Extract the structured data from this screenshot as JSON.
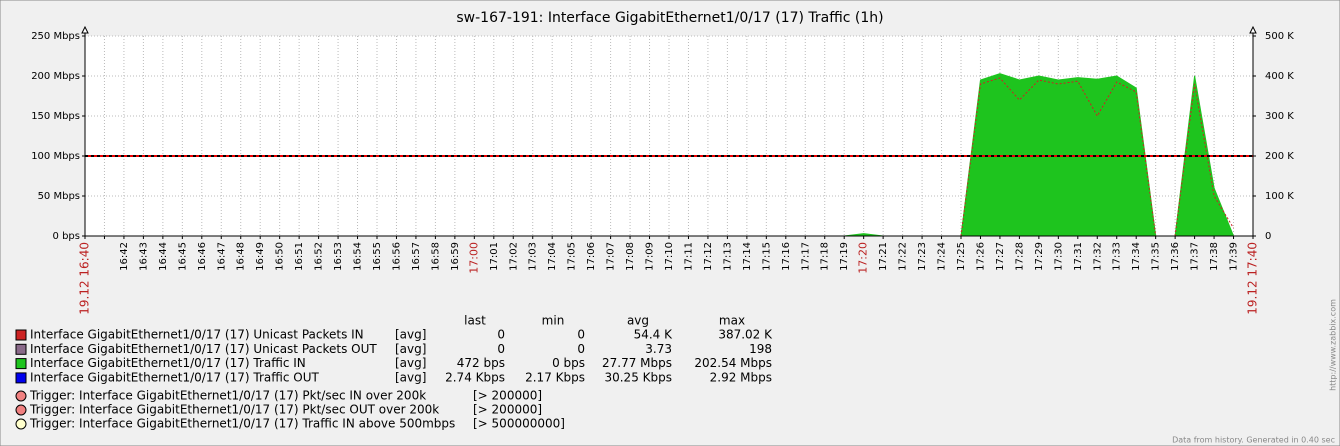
{
  "chart_data": {
    "type": "area",
    "title": "sw-167-191: Interface GigabitEthernet1/0/17 (17) Traffic  (1h)",
    "x": [
      "19.12 16:40",
      null,
      "16:42",
      "16:43",
      "16:44",
      "16:45",
      "16:46",
      "16:47",
      "16:48",
      "16:49",
      "16:50",
      "16:51",
      "16:52",
      "16:53",
      "16:54",
      "16:55",
      "16:56",
      "16:57",
      "16:58",
      "16:59",
      "17:00",
      "17:01",
      "17:02",
      "17:03",
      "17:04",
      "17:05",
      "17:06",
      "17:07",
      "17:08",
      "17:09",
      "17:10",
      "17:11",
      "17:12",
      "17:13",
      "17:14",
      "17:15",
      "17:16",
      "17:17",
      "17:18",
      "17:19",
      "17:20",
      "17:21",
      "17:22",
      "17:23",
      "17:24",
      "17:25",
      "17:26",
      "17:27",
      "17:28",
      "17:29",
      "17:30",
      "17:31",
      "17:32",
      "17:33",
      "17:34",
      "17:35",
      "17:36",
      "17:37",
      "17:38",
      "17:39",
      "19.12 17:40"
    ],
    "ylim": [
      0,
      250
    ],
    "yticks": [
      {
        "value": 0,
        "label": "0 bps"
      },
      {
        "value": 50,
        "label": "50 Mbps"
      },
      {
        "value": 100,
        "label": "100 Mbps"
      },
      {
        "value": 150,
        "label": "150 Mbps"
      },
      {
        "value": 200,
        "label": "200 Mbps"
      },
      {
        "value": 250,
        "label": "250 Mbps"
      }
    ],
    "y2lim": [
      0,
      500
    ],
    "y2ticks": [
      0,
      {
        "value": 100,
        "label": "100 K"
      },
      {
        "value": 200,
        "label": "200 K"
      },
      {
        "value": 300,
        "label": "300 K"
      },
      {
        "value": 400,
        "label": "400 K"
      },
      {
        "value": 500,
        "label": "500 K"
      }
    ],
    "grid": true,
    "series": [
      {
        "name": "Interface GigabitEthernet1/0/17 (17) Unicast Packets IN",
        "color": "#cc2222",
        "style": "dashed",
        "axis": "y2",
        "values": [
          0,
          0,
          0,
          0,
          0,
          0,
          0,
          0,
          0,
          0,
          0,
          0,
          0,
          0,
          0,
          0,
          0,
          0,
          0,
          0,
          0,
          0,
          0,
          0,
          0,
          0,
          0,
          0,
          0,
          0,
          0,
          0,
          0,
          0,
          0,
          0,
          0,
          0,
          0,
          0,
          0,
          0,
          0,
          0,
          0,
          0,
          380,
          395,
          340,
          390,
          380,
          387,
          300,
          385,
          360,
          0,
          0,
          380,
          100,
          20,
          null
        ]
      },
      {
        "name": "Interface GigabitEthernet1/0/17 (17) Unicast Packets OUT",
        "color": "#8a6a8a",
        "style": "line",
        "axis": "y2",
        "values": [
          0,
          0,
          0,
          0,
          0,
          0,
          0,
          0,
          0,
          0,
          0,
          0,
          0,
          0,
          0,
          0,
          0,
          0,
          0,
          0,
          0,
          0,
          0,
          0,
          0,
          0,
          0,
          0,
          0,
          0,
          0,
          0,
          0,
          0,
          0,
          0,
          0,
          0,
          0,
          0,
          0,
          0,
          0,
          0,
          0,
          0,
          0,
          0,
          0,
          0,
          0,
          0,
          0,
          0,
          0,
          0,
          0,
          0,
          0,
          0,
          null
        ]
      },
      {
        "name": "Interface GigabitEthernet1/0/17 (17) Traffic IN",
        "color": "#1ec41e",
        "style": "filled",
        "values": [
          0,
          0,
          0,
          0,
          0,
          0,
          0,
          0,
          0,
          0,
          0,
          0,
          0,
          0,
          0,
          0,
          0,
          0,
          0,
          0,
          0,
          0,
          0,
          0,
          0,
          0,
          0,
          0,
          0,
          0,
          0,
          0,
          0,
          0,
          0,
          0,
          0,
          0,
          0,
          0,
          3,
          0,
          0,
          0,
          0,
          0,
          195,
          203,
          195,
          200,
          195,
          198,
          196,
          200,
          185,
          0,
          0,
          200,
          60,
          0,
          null
        ]
      },
      {
        "name": "Interface GigabitEthernet1/0/17 (17) Traffic OUT",
        "color": "#0000ee",
        "style": "line",
        "values": [
          0.03,
          0.03,
          0.03,
          0.03,
          0.03,
          0.03,
          0.03,
          0.03,
          0.03,
          0.03,
          0.03,
          0.03,
          0.03,
          0.03,
          0.03,
          0.03,
          0.03,
          0.03,
          0.03,
          0.03,
          0.03,
          0.03,
          0.03,
          0.03,
          0.03,
          0.03,
          0.03,
          0.03,
          0.03,
          0.03,
          0.03,
          0.03,
          0.03,
          0.03,
          0.03,
          0.03,
          0.03,
          0.03,
          0.03,
          0.03,
          0.03,
          0.03,
          0.03,
          0.03,
          0.03,
          0.03,
          0.03,
          0.03,
          0.03,
          0.03,
          0.03,
          0.03,
          0.03,
          0.03,
          0.03,
          0.03,
          0.03,
          0.03,
          0.03,
          0.03,
          null
        ]
      }
    ],
    "legend": {
      "columns": [
        "last",
        "min",
        "avg",
        "max"
      ],
      "function": "[avg]",
      "rows": [
        [
          "0",
          "0",
          "54.4 K",
          "387.02 K"
        ],
        [
          "0",
          "0",
          "3.73",
          "198"
        ],
        [
          "472 bps",
          "0 bps",
          "27.77 Mbps",
          "202.54 Mbps"
        ],
        [
          "2.74 Kbps",
          "2.17 Kbps",
          "30.25 Kbps",
          "2.92 Mbps"
        ]
      ]
    },
    "triggers": [
      {
        "name": "Trigger: Interface GigabitEthernet1/0/17 (17) Pkt/sec IN over 200k",
        "label": "[> 200000]",
        "value": 200,
        "axis": "y2",
        "color": "#f08080"
      },
      {
        "name": "Trigger: Interface GigabitEthernet1/0/17 (17) Pkt/sec OUT over 200k",
        "label": "[> 200000]",
        "value": 200,
        "axis": "y2",
        "color": "#f08080"
      },
      {
        "name": "Trigger: Interface GigabitEthernet1/0/17 (17) Traffic IN above 500mbps",
        "label": "[> 500000000]",
        "value": 500,
        "axis": "y",
        "color": "#ffffcc"
      }
    ],
    "footer": "Data from history. Generated in 0.40 sec",
    "url": "http://www.zabbix.com"
  }
}
